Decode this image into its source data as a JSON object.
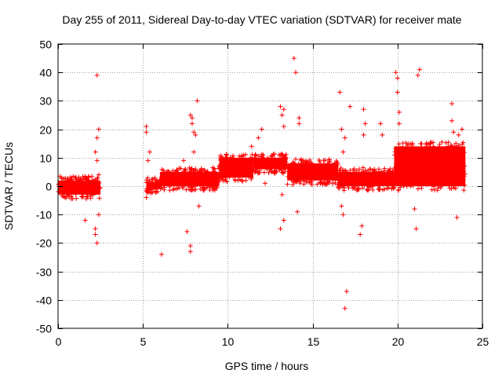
{
  "chart_data": {
    "type": "scatter",
    "title": "Day 255 of 2011, Sidereal Day-to-day VTEC variation (SDTVAR) for receiver mate",
    "xlabel": "GPS time / hours",
    "ylabel": "SDTVAR / TECUs",
    "xlim": [
      0,
      25
    ],
    "ylim": [
      -50,
      50
    ],
    "xticks": [
      0,
      5,
      10,
      15,
      20,
      25
    ],
    "yticks": [
      -50,
      -40,
      -30,
      -20,
      -10,
      0,
      10,
      20,
      30,
      40,
      50
    ],
    "grid": true,
    "marker": "+",
    "colors": {
      "series": "#ff0000",
      "grid": "#a0a0a0",
      "axis": "#000000"
    },
    "series": [
      {
        "name": "SDTVAR",
        "dense_bands": [
          {
            "x_start": 0.0,
            "x_end": 2.5,
            "y_low": -3,
            "y_high": 2
          },
          {
            "x_start": 5.2,
            "x_end": 6.0,
            "y_low": -1,
            "y_high": 1.5
          },
          {
            "x_start": 6.0,
            "x_end": 9.5,
            "y_low": 0,
            "y_high": 5
          },
          {
            "x_start": 9.5,
            "x_end": 11.5,
            "y_low": 3,
            "y_high": 10
          },
          {
            "x_start": 11.5,
            "x_end": 13.5,
            "y_low": 6,
            "y_high": 10
          },
          {
            "x_start": 13.5,
            "x_end": 16.5,
            "y_low": 2,
            "y_high": 8
          },
          {
            "x_start": 16.5,
            "x_end": 19.8,
            "y_low": 0,
            "y_high": 5
          },
          {
            "x_start": 19.8,
            "x_end": 24.0,
            "y_low": 0,
            "y_high": 14
          }
        ],
        "outliers": [
          [
            2.3,
            39
          ],
          [
            2.4,
            20
          ],
          [
            2.3,
            17
          ],
          [
            2.2,
            12
          ],
          [
            2.3,
            9
          ],
          [
            2.4,
            4
          ],
          [
            1.6,
            -12
          ],
          [
            2.2,
            -15
          ],
          [
            2.2,
            -17
          ],
          [
            2.3,
            -20
          ],
          [
            2.4,
            -10
          ],
          [
            5.2,
            21
          ],
          [
            5.2,
            19
          ],
          [
            5.4,
            12
          ],
          [
            5.3,
            9
          ],
          [
            5.2,
            -4
          ],
          [
            6.1,
            -24
          ],
          [
            7.4,
            9
          ],
          [
            7.5,
            6
          ],
          [
            7.6,
            -16
          ],
          [
            7.8,
            -21
          ],
          [
            7.8,
            -23
          ],
          [
            7.8,
            25
          ],
          [
            7.9,
            24
          ],
          [
            7.9,
            22
          ],
          [
            8.0,
            19
          ],
          [
            8.1,
            18
          ],
          [
            8.2,
            30
          ],
          [
            8.0,
            12
          ],
          [
            8.3,
            -7
          ],
          [
            10.6,
            2
          ],
          [
            11.4,
            14
          ],
          [
            11.8,
            17
          ],
          [
            12.0,
            20
          ],
          [
            12.2,
            1
          ],
          [
            13.1,
            28
          ],
          [
            13.3,
            27
          ],
          [
            13.2,
            25
          ],
          [
            13.3,
            21
          ],
          [
            13.1,
            -15
          ],
          [
            13.3,
            -12
          ],
          [
            13.2,
            -3
          ],
          [
            13.9,
            45
          ],
          [
            14.0,
            40
          ],
          [
            14.2,
            24
          ],
          [
            14.2,
            22
          ],
          [
            14.1,
            -9
          ],
          [
            16.6,
            33
          ],
          [
            16.7,
            20
          ],
          [
            16.9,
            17
          ],
          [
            16.8,
            12
          ],
          [
            16.7,
            -7
          ],
          [
            16.8,
            -10
          ],
          [
            17.0,
            -37
          ],
          [
            16.9,
            -43
          ],
          [
            17.2,
            28
          ],
          [
            18.0,
            27
          ],
          [
            18.1,
            22
          ],
          [
            18.0,
            18
          ],
          [
            17.9,
            -14
          ],
          [
            17.8,
            -17
          ],
          [
            19.0,
            22
          ],
          [
            19.1,
            18
          ],
          [
            19.9,
            40
          ],
          [
            20.0,
            38
          ],
          [
            20.0,
            33
          ],
          [
            20.1,
            26
          ],
          [
            20.1,
            22
          ],
          [
            21.0,
            -8
          ],
          [
            21.1,
            -15
          ],
          [
            21.2,
            39
          ],
          [
            21.3,
            41
          ],
          [
            23.2,
            29
          ],
          [
            23.2,
            23
          ],
          [
            23.3,
            19
          ],
          [
            23.6,
            18
          ],
          [
            23.8,
            20
          ],
          [
            23.5,
            -11
          ]
        ]
      }
    ]
  }
}
